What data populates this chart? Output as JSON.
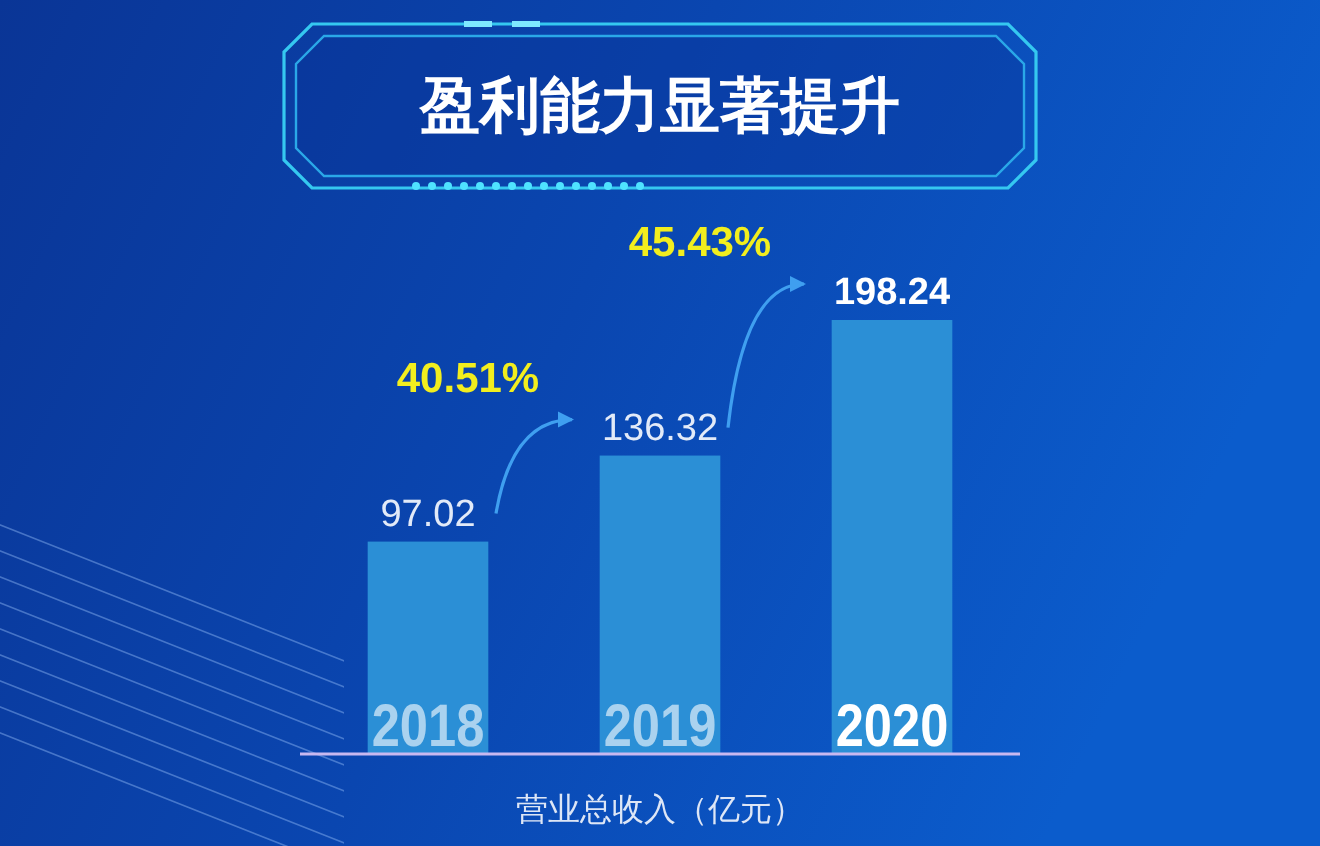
{
  "chart_data": {
    "type": "bar",
    "title": "盈利能力显著提升",
    "xlabel": "营业总收入（亿元）",
    "categories": [
      "2018",
      "2019",
      "2020"
    ],
    "values": [
      97.02,
      136.32,
      198.24
    ],
    "color": "#2b8fd6",
    "data_labels": true,
    "annotations": [
      "40.51%",
      "45.43%"
    ]
  }
}
